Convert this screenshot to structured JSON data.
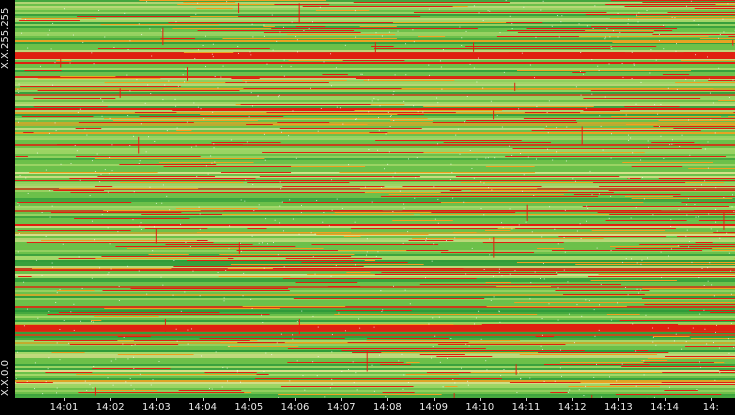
{
  "chart_data": {
    "type": "heatmap",
    "title": "",
    "xlabel": "",
    "ylabel": "",
    "x_tick_labels": [
      "14:01",
      "14:02",
      "14:03",
      "14:04",
      "14:05",
      "14:06",
      "14:07",
      "14:08",
      "14:09",
      "14:10",
      "14:11",
      "14:12",
      "14:13",
      "14:14",
      "14:"
    ],
    "y_tick_labels": {
      "top": "X.X.255.255",
      "bottom": "X.X.0.0"
    },
    "color_scale": [
      "#2e9a3a",
      "#6cc04a",
      "#a6d86a",
      "#d8e08a",
      "#f0a020",
      "#e02010"
    ],
    "background": "#000000"
  }
}
